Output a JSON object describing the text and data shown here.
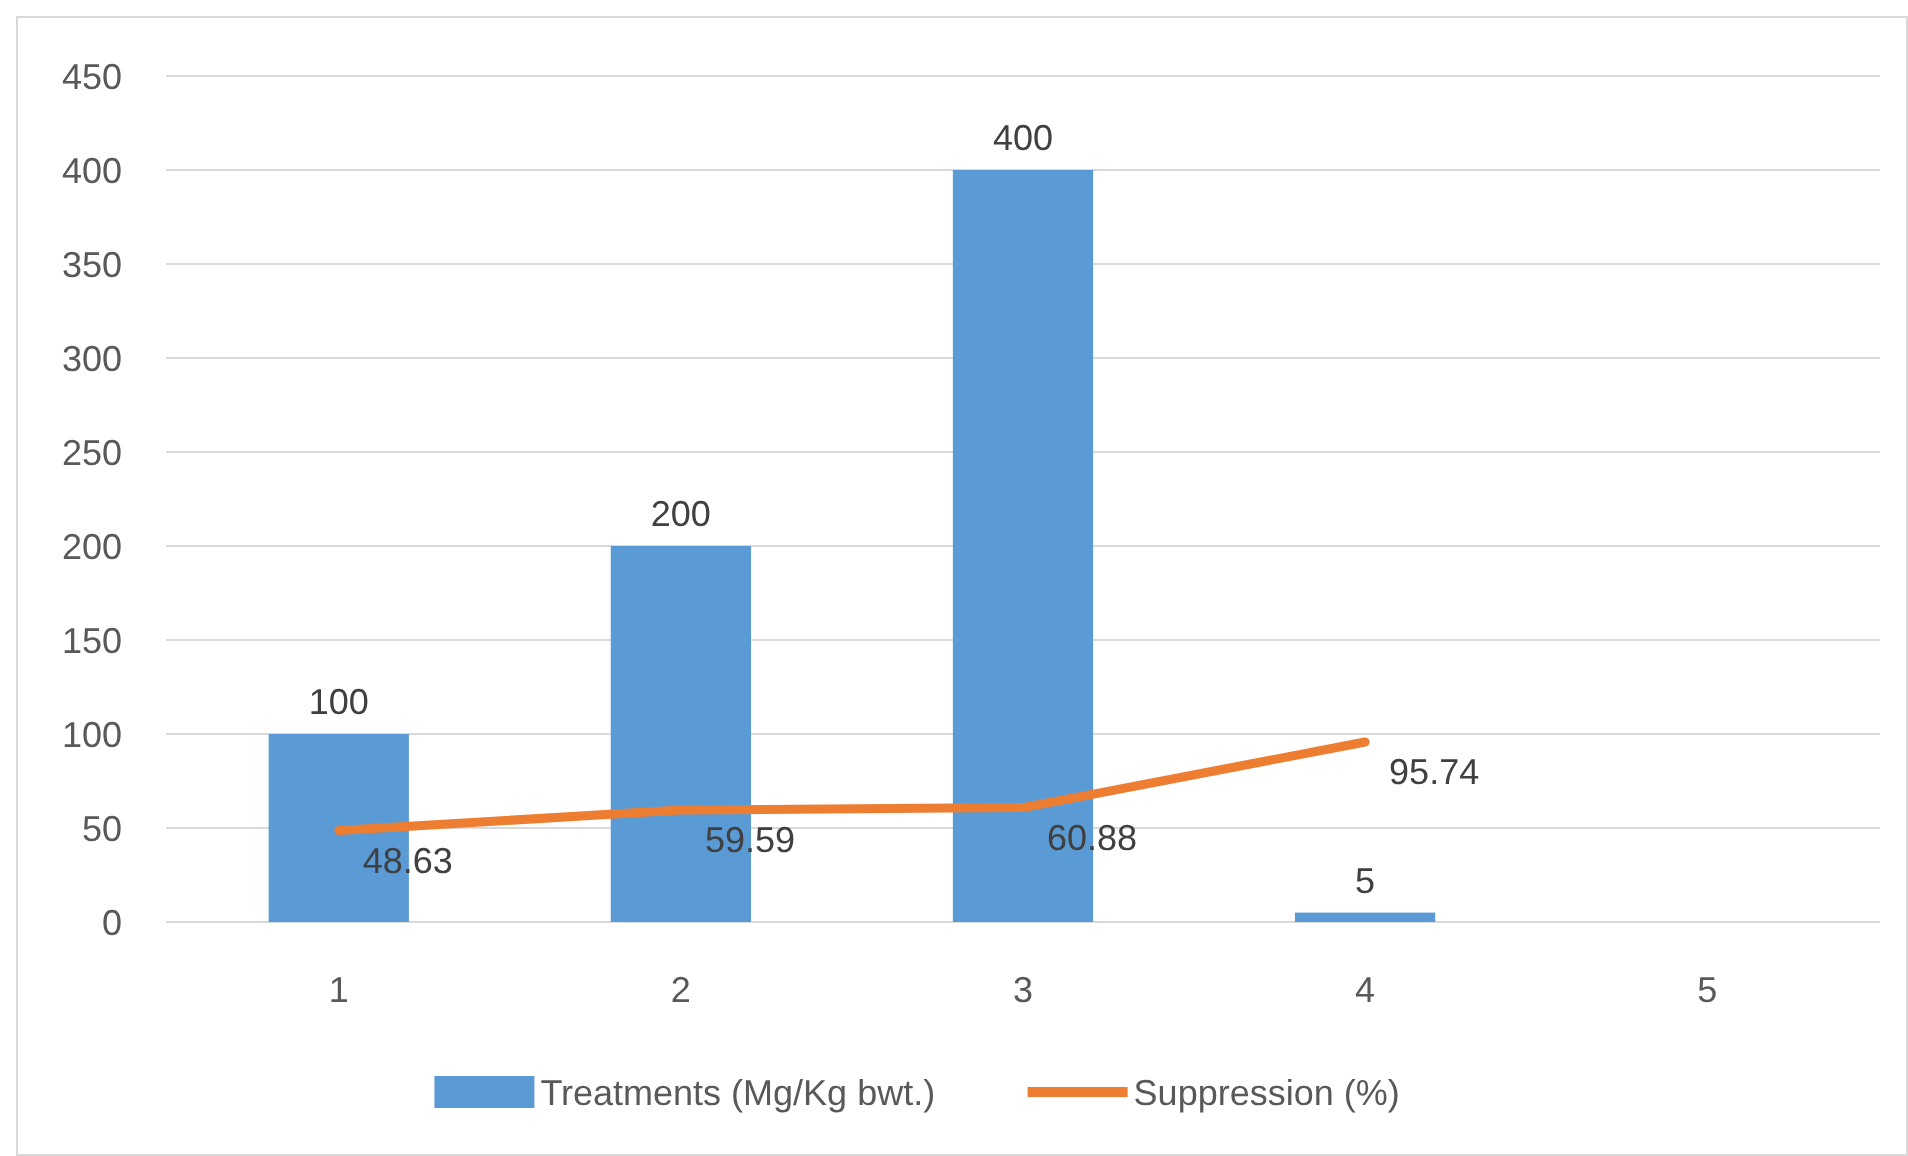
{
  "chart_data": {
    "type": "bar",
    "categories": [
      "1",
      "2",
      "3",
      "4",
      "5"
    ],
    "series": [
      {
        "name": "Treatments (Mg/Kg bwt.)",
        "color": "#5b9bd5",
        "values": [
          100,
          200,
          400,
          5,
          null
        ]
      },
      {
        "name": "Suppression (%)",
        "type": "line",
        "color": "#ed7d31",
        "values": [
          48.63,
          59.59,
          60.88,
          95.74,
          null
        ]
      }
    ],
    "ylim": [
      0,
      450
    ],
    "yticks": [
      0,
      50,
      100,
      150,
      200,
      250,
      300,
      350,
      400,
      450
    ],
    "grid": "y",
    "legend": "bottom",
    "data_labels": true
  }
}
